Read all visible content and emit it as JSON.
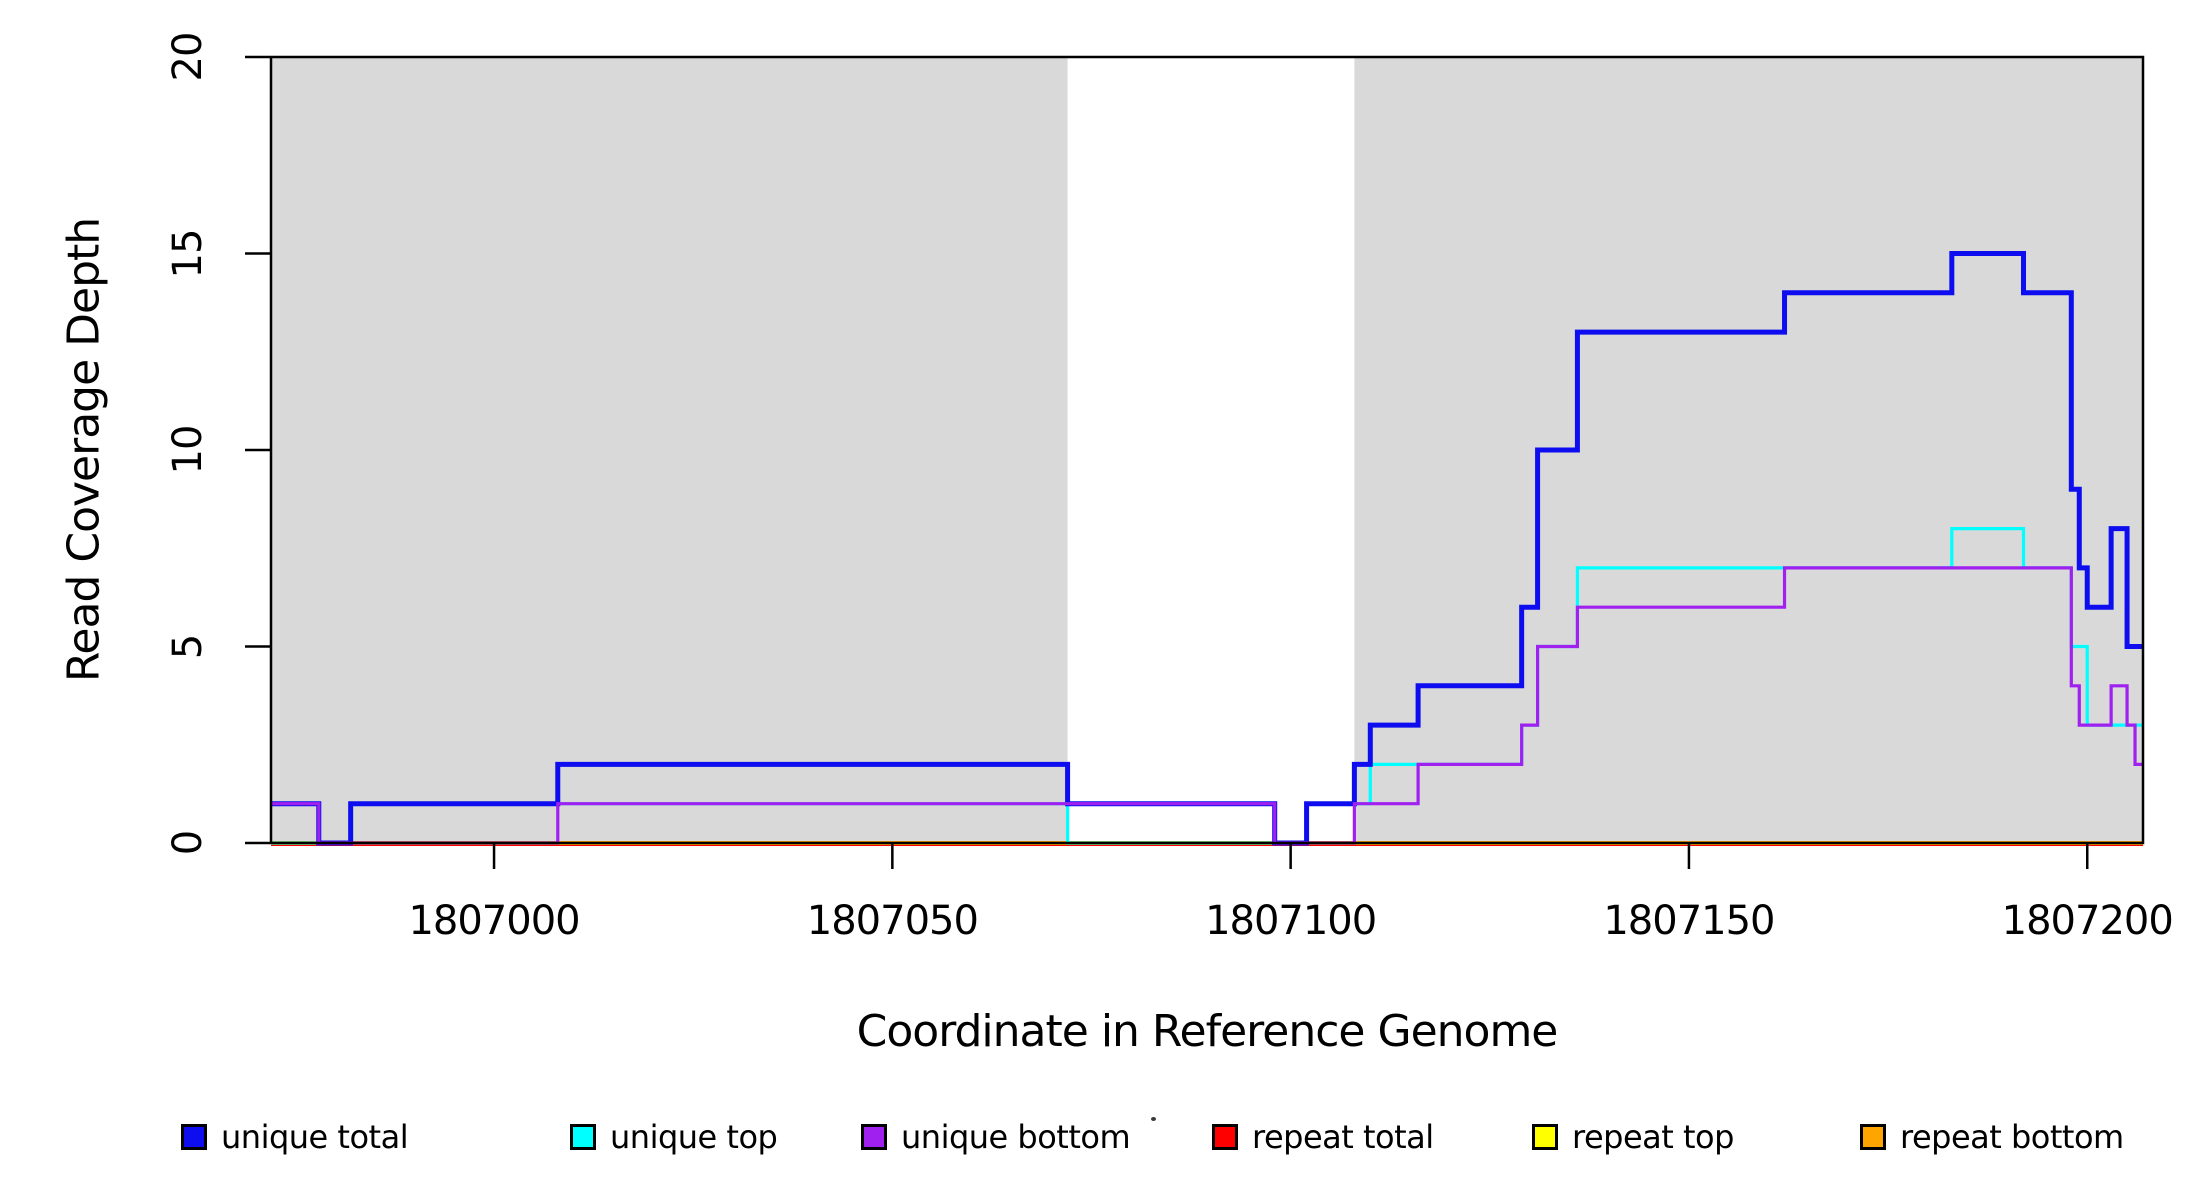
{
  "figure": {
    "background": "#FFFFFF",
    "plot_border_color": "#000000",
    "shade_color": "#D9D9D9"
  },
  "chart_data": {
    "type": "line",
    "subtype": "step-post",
    "title": "",
    "xlabel": "Coordinate in Reference Genome",
    "ylabel": "Read Coverage Depth",
    "xlim": [
      1806972,
      1807207
    ],
    "ylim": [
      0,
      20
    ],
    "grid": false,
    "legend_position": "bottom",
    "x_ticks": [
      {
        "value": 1807000,
        "label": "1807000"
      },
      {
        "value": 1807050,
        "label": "1807050"
      },
      {
        "value": 1807100,
        "label": "1807100"
      },
      {
        "value": 1807150,
        "label": "1807150"
      },
      {
        "value": 1807200,
        "label": "1807200"
      }
    ],
    "y_ticks": [
      {
        "value": 0,
        "label": "0"
      },
      {
        "value": 5,
        "label": "5"
      },
      {
        "value": 10,
        "label": "10"
      },
      {
        "value": 15,
        "label": "15"
      },
      {
        "value": 20,
        "label": "20"
      }
    ],
    "shaded_regions": [
      {
        "x0": 1806972,
        "x1": 1807072,
        "color": "#D9D9D9"
      },
      {
        "x0": 1807108,
        "x1": 1807207,
        "color": "#D9D9D9"
      }
    ],
    "series": [
      {
        "name": "unique total",
        "color": "#0D0DEF",
        "line_width": 5,
        "draw_order": 5,
        "y_offset": 0,
        "steps": [
          [
            1806972,
            1
          ],
          [
            1806978,
            0
          ],
          [
            1806982,
            1
          ],
          [
            1807008,
            2
          ],
          [
            1807072,
            1
          ],
          [
            1807098,
            0
          ],
          [
            1807102,
            1
          ],
          [
            1807108,
            2
          ],
          [
            1807110,
            3
          ],
          [
            1807116,
            4
          ],
          [
            1807129,
            6
          ],
          [
            1807131,
            10
          ],
          [
            1807136,
            13
          ],
          [
            1807162,
            14
          ],
          [
            1807183,
            15
          ],
          [
            1807192,
            14
          ],
          [
            1807198,
            9
          ],
          [
            1807199,
            7
          ],
          [
            1807200,
            6
          ],
          [
            1807203,
            8
          ],
          [
            1807205,
            5
          ],
          [
            1807207,
            5
          ]
        ]
      },
      {
        "name": "unique top",
        "color": "#00FFFF",
        "line_width": 3.2,
        "draw_order": 4,
        "y_offset": 0,
        "steps": [
          [
            1806972,
            0
          ],
          [
            1806982,
            1
          ],
          [
            1807072,
            0
          ],
          [
            1807102,
            1
          ],
          [
            1807110,
            2
          ],
          [
            1807129,
            3
          ],
          [
            1807131,
            5
          ],
          [
            1807136,
            7
          ],
          [
            1807183,
            8
          ],
          [
            1807192,
            7
          ],
          [
            1807198,
            5
          ],
          [
            1807200,
            3
          ],
          [
            1807207,
            3
          ]
        ]
      },
      {
        "name": "unique bottom",
        "color": "#A020F0",
        "line_width": 3.2,
        "draw_order": 6,
        "y_offset": 0,
        "steps": [
          [
            1806972,
            1
          ],
          [
            1806978,
            0
          ],
          [
            1807008,
            1
          ],
          [
            1807098,
            0
          ],
          [
            1807108,
            1
          ],
          [
            1807116,
            2
          ],
          [
            1807129,
            3
          ],
          [
            1807131,
            5
          ],
          [
            1807136,
            6
          ],
          [
            1807162,
            7
          ],
          [
            1807198,
            4
          ],
          [
            1807199,
            3
          ],
          [
            1807203,
            4
          ],
          [
            1807205,
            3
          ],
          [
            1807206,
            2
          ],
          [
            1807207,
            2
          ]
        ]
      },
      {
        "name": "repeat total",
        "color": "#FF0000",
        "line_width": 3.2,
        "draw_order": 1,
        "y_offset": 1.5,
        "steps": [
          [
            1806972,
            0
          ],
          [
            1807207,
            0
          ]
        ]
      },
      {
        "name": "repeat top",
        "color": "#FFFF00",
        "line_width": 3,
        "draw_order": 2,
        "y_offset": 0,
        "steps": [
          [
            1806972,
            0
          ],
          [
            1807207,
            0
          ]
        ]
      },
      {
        "name": "repeat bottom",
        "color": "#FFA500",
        "line_width": 4,
        "draw_order": 3,
        "y_offset": 0,
        "steps": [
          [
            1806972,
            0
          ],
          [
            1807207,
            0
          ]
        ]
      }
    ]
  },
  "legend": {
    "items": [
      {
        "label": "unique total",
        "color": "#0D0DEF"
      },
      {
        "label": "unique top",
        "color": "#00FFFF"
      },
      {
        "label": "unique bottom",
        "color": "#A020F0"
      },
      {
        "label": "repeat total",
        "color": "#FF0000"
      },
      {
        "label": "repeat top",
        "color": "#FFFF00"
      },
      {
        "label": "repeat bottom",
        "color": "#FFA500"
      }
    ]
  }
}
